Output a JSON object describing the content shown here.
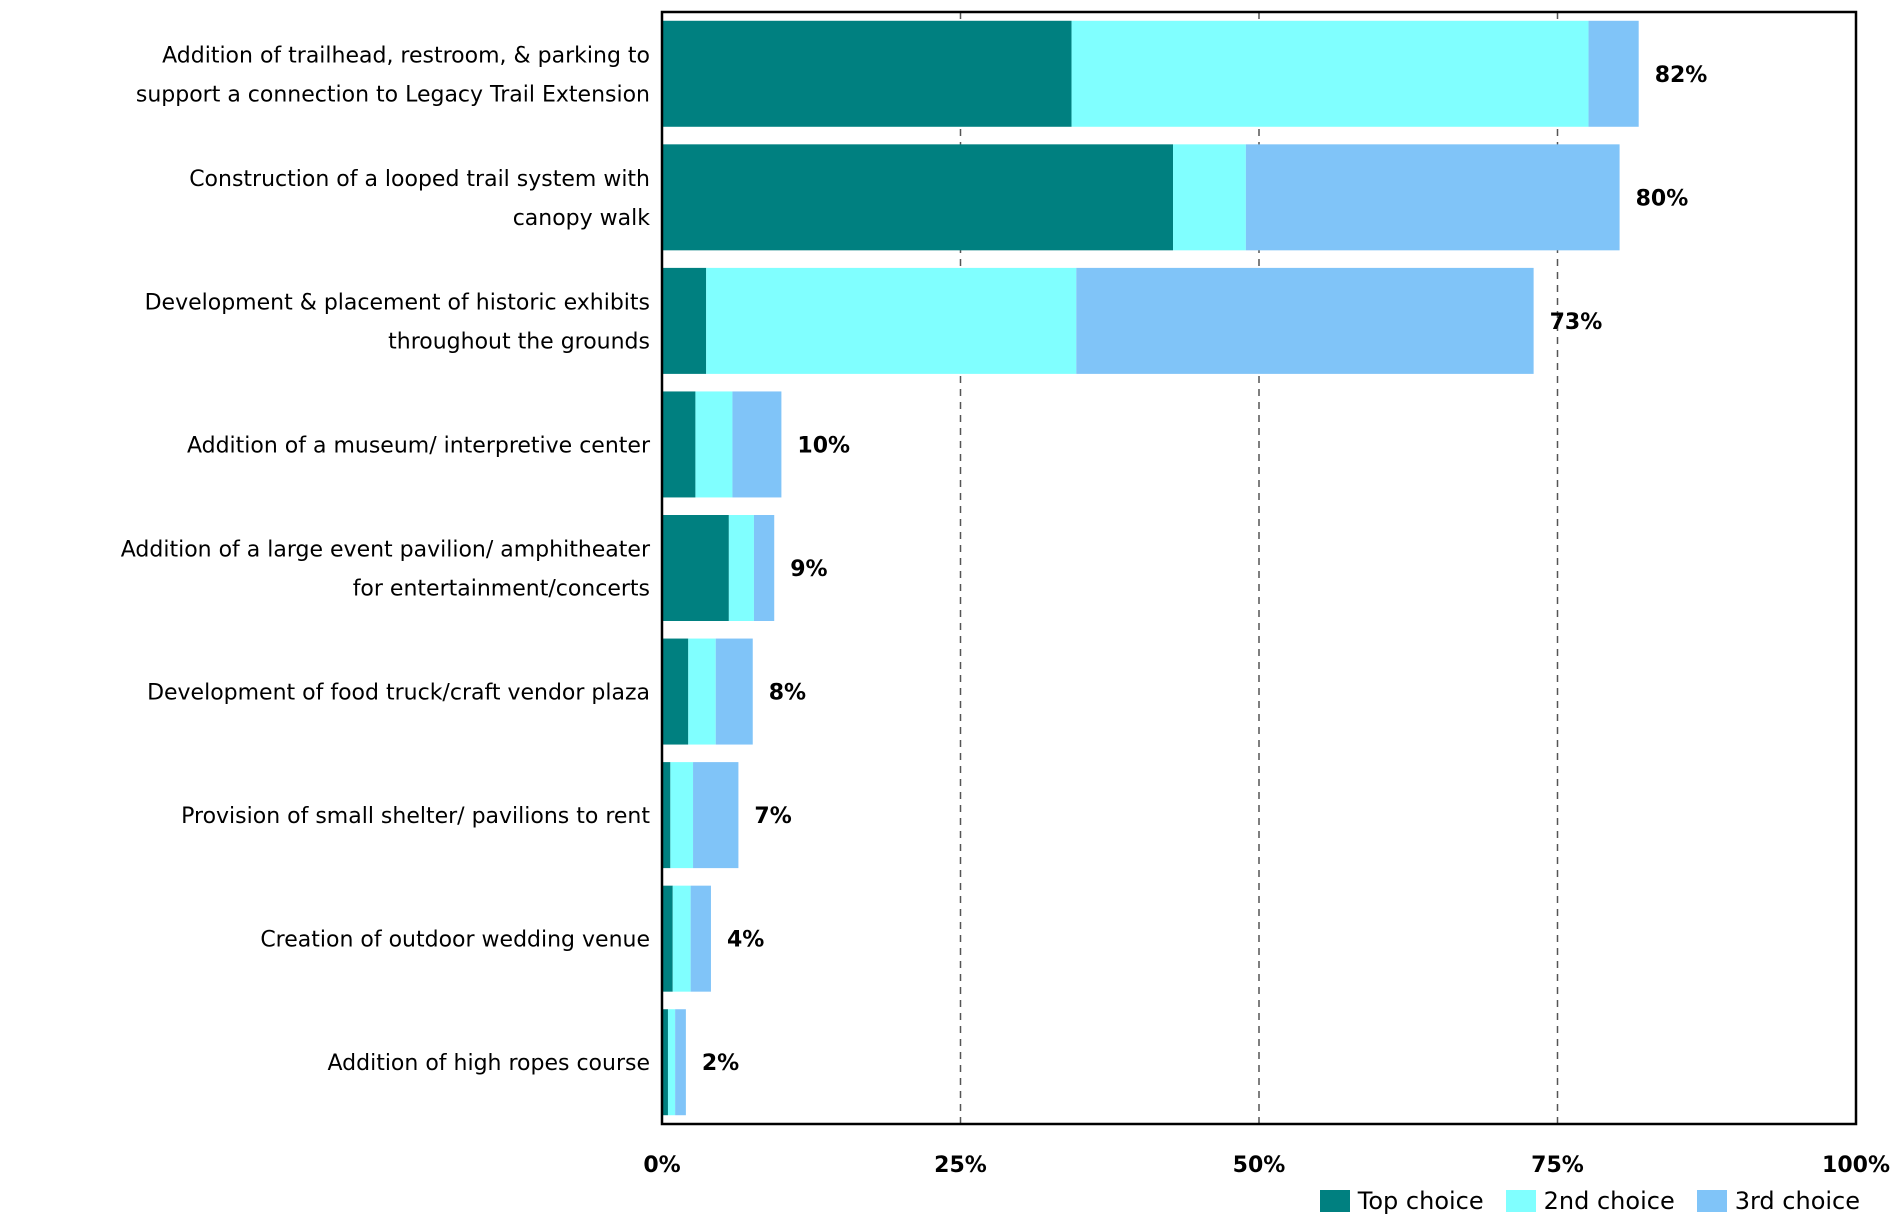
{
  "chart_data": {
    "type": "bar",
    "orientation": "horizontal",
    "stacked": true,
    "categories": [
      [
        "Addition of trailhead, restroom, & parking to",
        "support a connection to Legacy Trail Extension"
      ],
      [
        "Construction of a looped trail system with",
        "canopy walk"
      ],
      [
        "Development & placement of historic exhibits",
        "throughout the grounds"
      ],
      [
        "Addition of a museum/ interpretive center"
      ],
      [
        "Addition of a large event pavilion/ amphitheater",
        "for entertainment/concerts"
      ],
      [
        "Development of food truck/craft vendor plaza"
      ],
      [
        "Provision of small shelter/ pavilions to rent"
      ],
      [
        "Creation of outdoor wedding venue"
      ],
      [
        "Addition of high ropes course"
      ]
    ],
    "series": [
      {
        "name": "Top choice",
        "color": "#008080",
        "values": [
          34.3,
          42.8,
          3.7,
          2.8,
          5.6,
          2.2,
          0.7,
          0.9,
          0.5
        ]
      },
      {
        "name": "2nd choice",
        "color": "#80ffff",
        "values": [
          43.3,
          6.1,
          31.0,
          3.1,
          2.1,
          2.3,
          1.9,
          1.5,
          0.6
        ]
      },
      {
        "name": "3rd choice",
        "color": "#80c4f8",
        "values": [
          4.2,
          31.3,
          38.3,
          4.1,
          1.7,
          3.1,
          3.8,
          1.7,
          0.9
        ]
      }
    ],
    "totals": [
      "82%",
      "80%",
      "73%",
      "10%",
      "9%",
      "8%",
      "7%",
      "4%",
      "2%"
    ],
    "xlim": [
      0,
      100
    ],
    "xticks": [
      "0%",
      "25%",
      "50%",
      "75%",
      "100%"
    ],
    "grid": "vertical dashed",
    "legend": "bottom-right"
  }
}
